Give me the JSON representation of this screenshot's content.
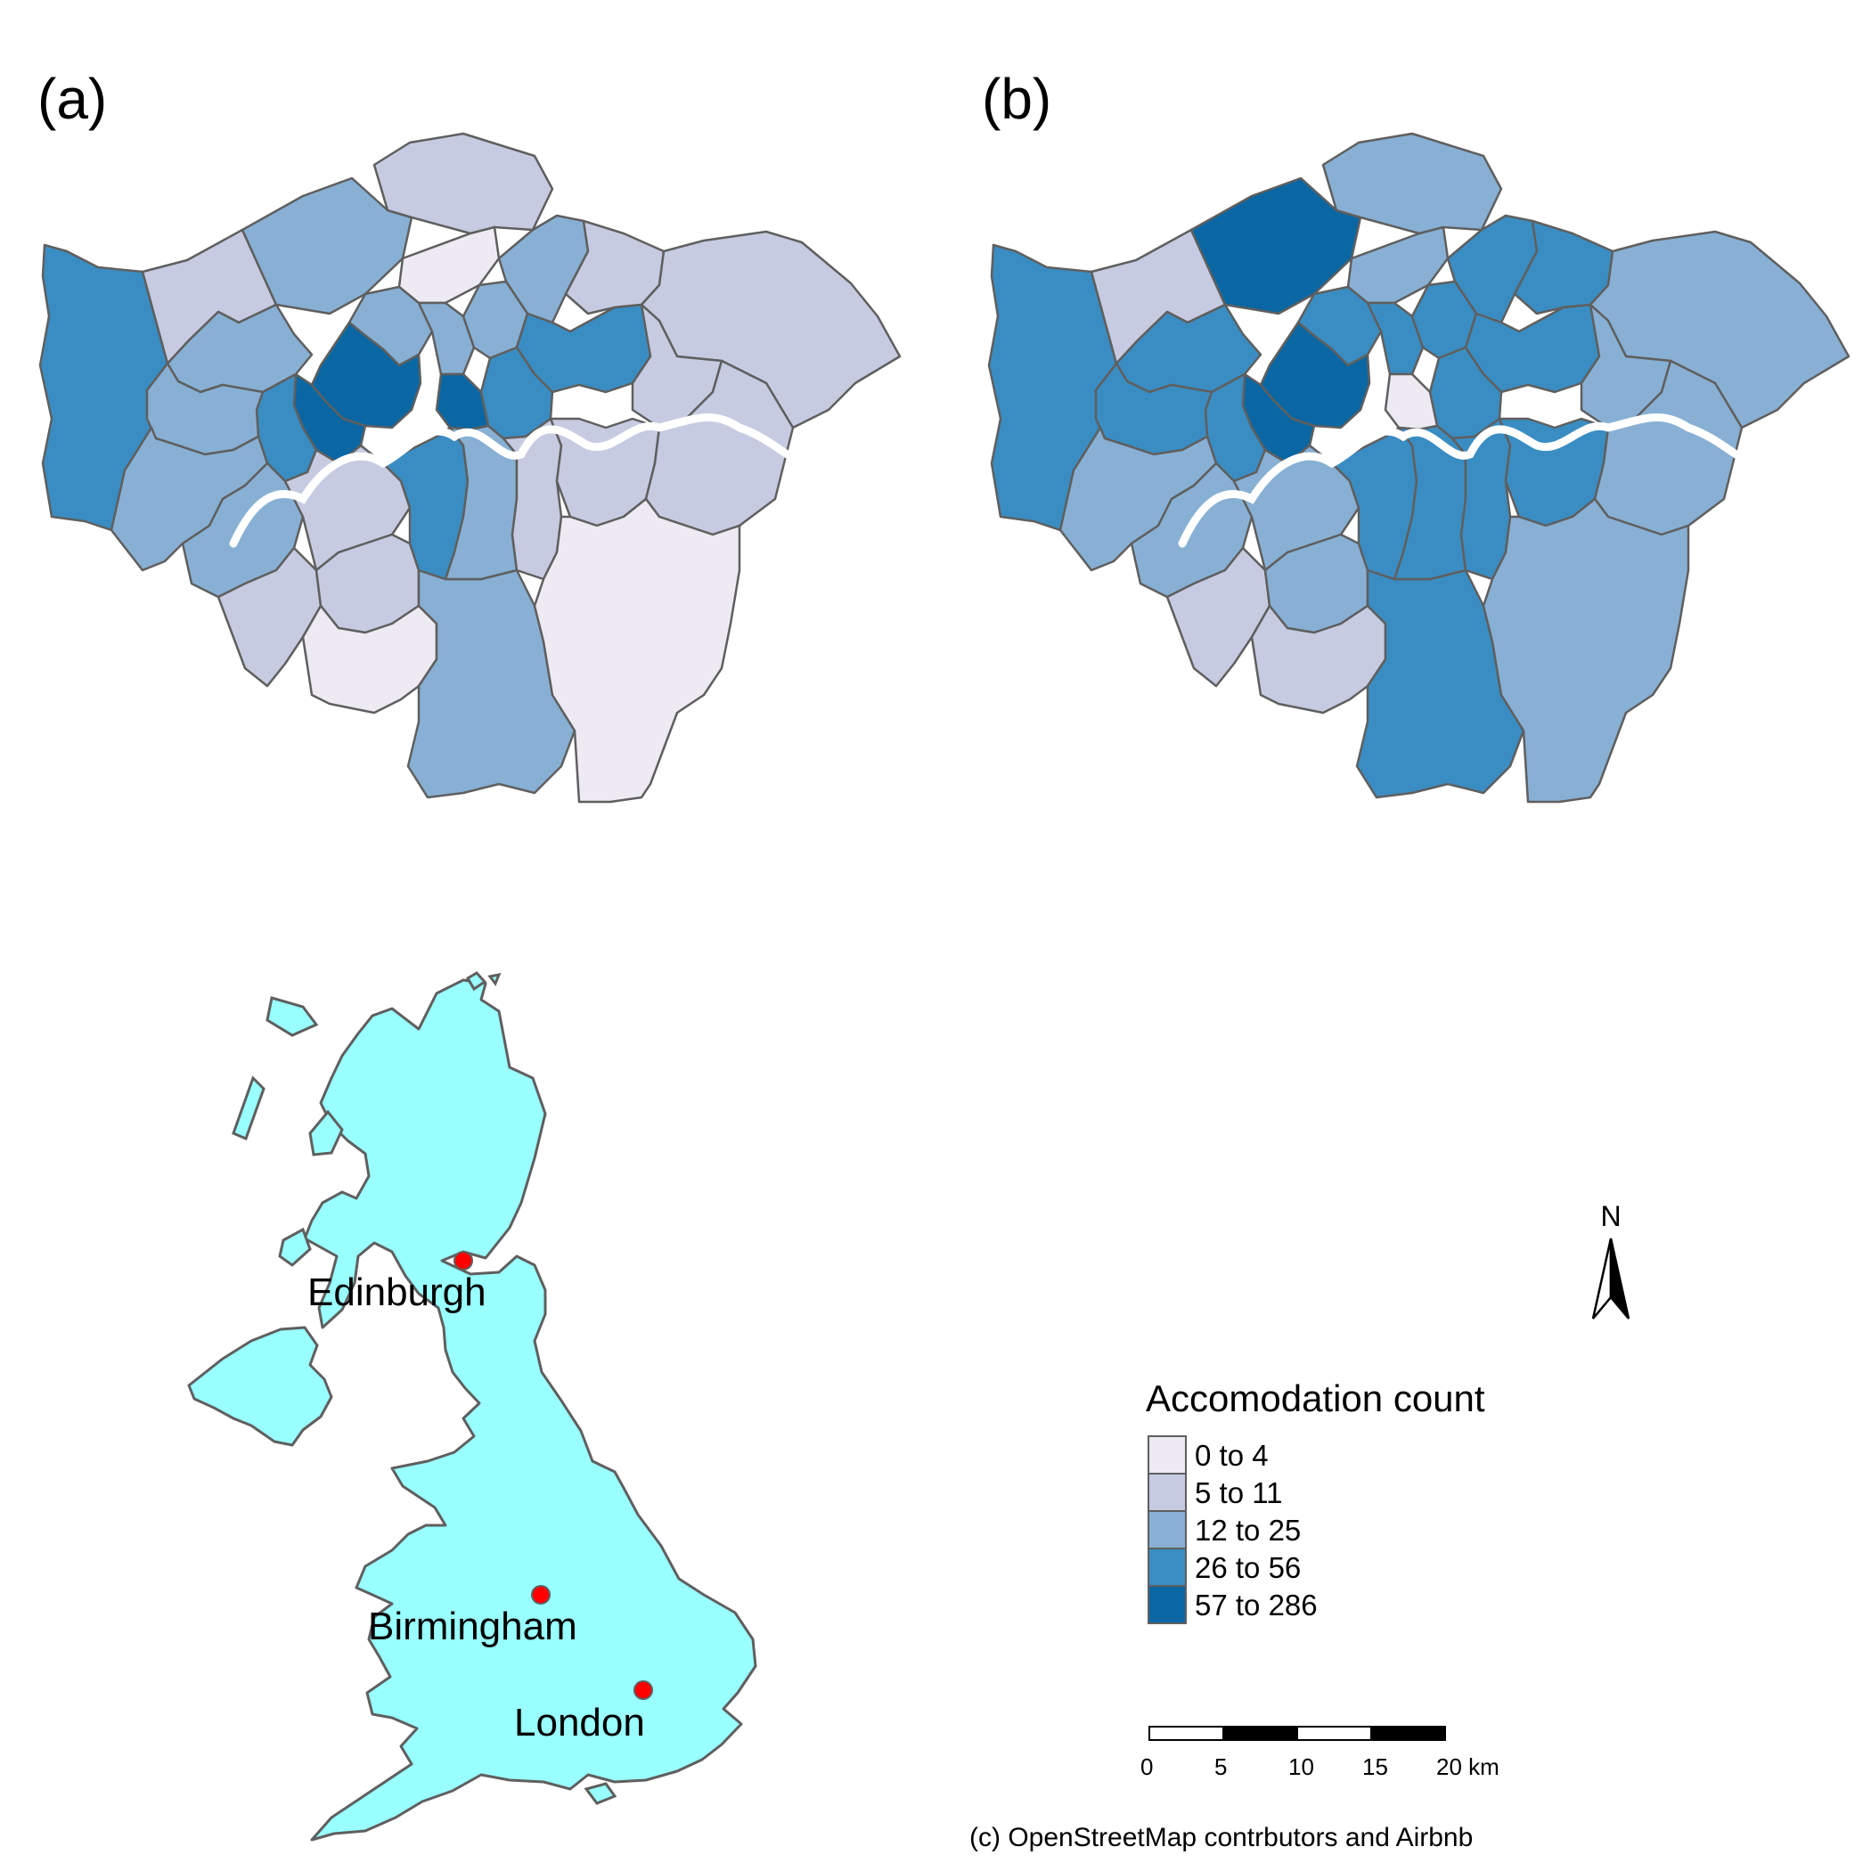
{
  "panels": [
    {
      "label": "(a)"
    },
    {
      "label": "(b)"
    }
  ],
  "legend": {
    "title": "Accomodation count",
    "classes": [
      {
        "label": "0 to 4",
        "color": "#eeeaf3"
      },
      {
        "label": "5 to 11",
        "color": "#c6cbe1"
      },
      {
        "label": "12 to 25",
        "color": "#88b0d4"
      },
      {
        "label": "26 to 56",
        "color": "#3a8dc2"
      },
      {
        "label": "57 to 286",
        "color": "#0a67a3"
      }
    ]
  },
  "north_arrow": {
    "label": "N"
  },
  "scale_bar": {
    "ticks": [
      "0",
      "5",
      "10",
      "15",
      "20 km"
    ]
  },
  "cities": [
    {
      "name": "Edinburgh"
    },
    {
      "name": "Birmingham"
    },
    {
      "name": "London"
    }
  ],
  "colors": {
    "uk_land": "#99ffff",
    "boundary": "#5f5f5f",
    "city_marker": "#ff0000"
  },
  "credit": "(c) OpenStreetMap contrbutors and Airbnb"
}
